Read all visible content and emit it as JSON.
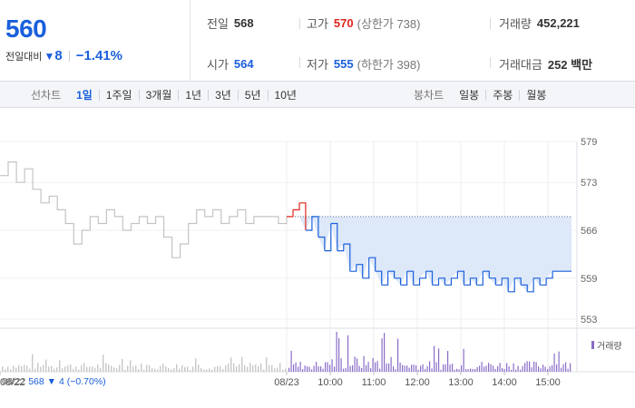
{
  "header": {
    "current_price": "560",
    "change_label": "전일대비",
    "change_arrow": "▼",
    "change_amount": "8",
    "change_pct": "−1.41%",
    "prev_close_label": "전일",
    "prev_close": "568",
    "high_label": "고가",
    "high": "570",
    "upper_limit": "(상한가 738)",
    "volume_label": "거래량",
    "volume": "452,221",
    "open_label": "시가",
    "open": "564",
    "low_label": "저가",
    "low": "555",
    "lower_limit": "(하한가 398)",
    "turnover_label": "거래대금",
    "turnover": "252 백만"
  },
  "toolbar": {
    "line_chart_label": "선차트",
    "periods": [
      "1일",
      "1주일",
      "3개월",
      "1년",
      "3년",
      "5년",
      "10년"
    ],
    "active_period": "1일",
    "candle_chart_label": "봉차트",
    "candles": [
      "일봉",
      "주봉",
      "월봉"
    ]
  },
  "chart": {
    "y_ticks": [
      "579",
      "573",
      "566",
      "559",
      "553"
    ],
    "x_ticks": [
      "08/22",
      "08/23",
      "10:00",
      "11:00",
      "12:00",
      "13:00",
      "14:00",
      "15:00"
    ],
    "prev_day_summary": {
      "date": "08/22",
      "close": "568",
      "arrow": "▼",
      "change": "4",
      "pct": "(−0.70%)"
    },
    "volume_legend": "거래량",
    "colors": {
      "prev_day_line": "#c4c4c4",
      "rise_line": "#e0271f",
      "fall_line": "#1a5fdc",
      "fall_fill": "#dde8f8",
      "volume_bar_today": "#8a6cc8",
      "volume_bar_prev": "#c8c8c8"
    }
  },
  "chart_data": {
    "type": "line",
    "ylim": [
      553,
      579
    ],
    "baseline": 568,
    "series": [
      {
        "day": "08/22",
        "values": [
          574,
          576,
          573,
          575,
          572,
          570,
          571,
          569,
          567,
          564,
          566,
          568,
          567,
          569,
          568,
          566,
          567,
          568,
          567,
          568,
          565,
          562,
          564,
          567,
          569,
          568,
          569,
          567,
          568,
          569,
          567,
          568,
          568,
          568,
          567,
          568
        ]
      },
      {
        "day": "08/23",
        "values": [
          568,
          569,
          570,
          566,
          568,
          565,
          563,
          567,
          563,
          564,
          560,
          561,
          559,
          562,
          560,
          558,
          560,
          559,
          558,
          560,
          558,
          559,
          560,
          558,
          559,
          558,
          559,
          560,
          558,
          559,
          558,
          560,
          559,
          558,
          559,
          557,
          559,
          558,
          557,
          559,
          558,
          559,
          560,
          560,
          560,
          560
        ]
      }
    ],
    "volume_note": "relative volume bars, today heavier after 10:00"
  }
}
